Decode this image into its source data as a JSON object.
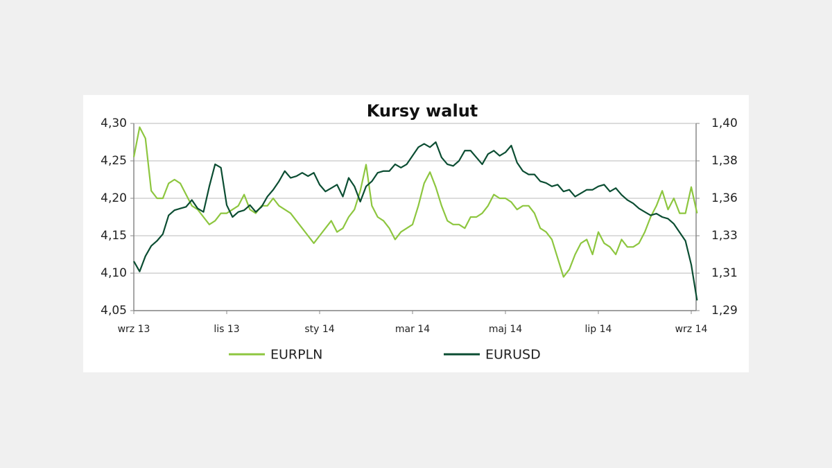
{
  "chart_data": {
    "type": "line",
    "title": "Kursy walut",
    "categories": [
      "wrz 13",
      null,
      null,
      null,
      null,
      null,
      null,
      null,
      null,
      null,
      null,
      null,
      null,
      null,
      null,
      null,
      "lis 13",
      null,
      null,
      null,
      null,
      null,
      null,
      null,
      null,
      null,
      null,
      null,
      null,
      null,
      null,
      null,
      "sty 14",
      null,
      null,
      null,
      null,
      null,
      null,
      null,
      null,
      null,
      null,
      null,
      null,
      null,
      null,
      null,
      "mar 14",
      null,
      null,
      null,
      null,
      null,
      null,
      null,
      null,
      null,
      null,
      null,
      null,
      null,
      null,
      null,
      "maj 14",
      null,
      null,
      null,
      null,
      null,
      null,
      null,
      null,
      null,
      null,
      null,
      null,
      null,
      null,
      null,
      "lip 14",
      null,
      null,
      null,
      null,
      null,
      null,
      null,
      null,
      null,
      null,
      null,
      null,
      null,
      null,
      null,
      "wrz 14",
      null
    ],
    "series": [
      {
        "name": "EURPLN",
        "color": "#8dc63f",
        "values": [
          4.255,
          4.295,
          4.28,
          4.21,
          4.2,
          4.2,
          4.22,
          4.225,
          4.22,
          4.205,
          4.19,
          4.185,
          4.175,
          4.165,
          4.17,
          4.18,
          4.18,
          4.185,
          4.19,
          4.205,
          4.185,
          4.18,
          4.19,
          4.19,
          4.2,
          4.19,
          4.185,
          4.18,
          4.17,
          4.16,
          4.15,
          4.14,
          4.15,
          4.16,
          4.17,
          4.155,
          4.16,
          4.175,
          4.185,
          4.21,
          4.245,
          4.19,
          4.175,
          4.17,
          4.16,
          4.145,
          4.155,
          4.16,
          4.165,
          4.19,
          4.22,
          4.235,
          4.215,
          4.19,
          4.17,
          4.165,
          4.165,
          4.16,
          4.175,
          4.175,
          4.18,
          4.19,
          4.205,
          4.2,
          4.2,
          4.195,
          4.185,
          4.19,
          4.19,
          4.18,
          4.16,
          4.155,
          4.145,
          4.12,
          4.095,
          4.105,
          4.125,
          4.14,
          4.145,
          4.125,
          4.155,
          4.14,
          4.135,
          4.125,
          4.145,
          4.135,
          4.135,
          4.14,
          4.155,
          4.175,
          4.19,
          4.21,
          4.185,
          4.2,
          4.18,
          4.18,
          4.215,
          4.18
        ]
      },
      {
        "name": "EURUSD",
        "color": "#0b4d32",
        "axis": "y2",
        "values": [
          1.319,
          1.313,
          1.322,
          1.328,
          1.331,
          1.335,
          1.346,
          1.349,
          1.35,
          1.351,
          1.355,
          1.35,
          1.348,
          1.363,
          1.376,
          1.374,
          1.352,
          1.345,
          1.348,
          1.349,
          1.352,
          1.348,
          1.351,
          1.357,
          1.361,
          1.366,
          1.372,
          1.368,
          1.369,
          1.371,
          1.369,
          1.371,
          1.364,
          1.36,
          1.362,
          1.364,
          1.357,
          1.368,
          1.363,
          1.354,
          1.363,
          1.366,
          1.371,
          1.372,
          1.372,
          1.376,
          1.374,
          1.376,
          1.381,
          1.386,
          1.388,
          1.386,
          1.389,
          1.38,
          1.376,
          1.375,
          1.378,
          1.384,
          1.384,
          1.38,
          1.376,
          1.382,
          1.384,
          1.381,
          1.383,
          1.387,
          1.377,
          1.372,
          1.37,
          1.37,
          1.366,
          1.365,
          1.363,
          1.364,
          1.36,
          1.361,
          1.357,
          1.359,
          1.361,
          1.361,
          1.363,
          1.364,
          1.36,
          1.362,
          1.358,
          1.355,
          1.353,
          1.35,
          1.348,
          1.346,
          1.347,
          1.345,
          1.344,
          1.341,
          1.336,
          1.331,
          1.317,
          1.296
        ]
      }
    ],
    "ylim": [
      4.05,
      4.3
    ],
    "yticks": [
      {
        "value": 4.05,
        "label": "4,05"
      },
      {
        "value": 4.1,
        "label": "4,10"
      },
      {
        "value": 4.15,
        "label": "4,15"
      },
      {
        "value": 4.2,
        "label": "4,20"
      },
      {
        "value": 4.25,
        "label": "4,25"
      },
      {
        "value": 4.3,
        "label": "4,30"
      }
    ],
    "y2lim": [
      1.29,
      1.4
    ],
    "y2ticks": [
      {
        "value": 1.29,
        "label": "1,29"
      },
      {
        "value": 1.312,
        "label": "1,31"
      },
      {
        "value": 1.334,
        "label": "1,33"
      },
      {
        "value": 1.356,
        "label": "1,36"
      },
      {
        "value": 1.378,
        "label": "1,38"
      },
      {
        "value": 1.4,
        "label": "1,40"
      }
    ],
    "grid": true,
    "legend": "bottom"
  }
}
